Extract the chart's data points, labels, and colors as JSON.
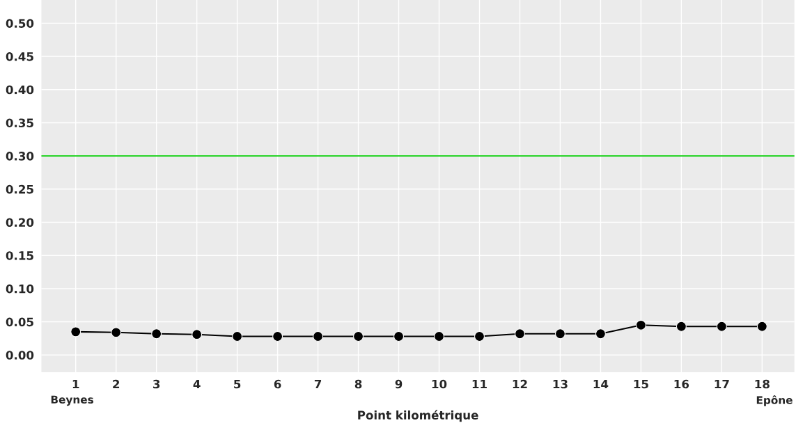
{
  "chart_data": {
    "type": "line",
    "xlabel": "Point kilométrique",
    "x": [
      1,
      2,
      3,
      4,
      5,
      6,
      7,
      8,
      9,
      10,
      11,
      12,
      13,
      14,
      15,
      16,
      17,
      18
    ],
    "series": [
      {
        "color": "#000000",
        "values": [
          0.035,
          0.034,
          0.032,
          0.031,
          0.028,
          0.028,
          0.028,
          0.028,
          0.028,
          0.028,
          0.028,
          0.032,
          0.032,
          0.032,
          0.045,
          0.043,
          0.043,
          0.043
        ]
      }
    ],
    "marker": "circle",
    "line_style": "solid",
    "grid": true,
    "legend": false,
    "xlim": [
      0.15,
      18.8
    ],
    "xticks": [
      1,
      2,
      3,
      4,
      5,
      6,
      7,
      8,
      9,
      10,
      11,
      12,
      13,
      14,
      15,
      16,
      17,
      18
    ],
    "ylim": [
      -0.026,
      0.535
    ],
    "yticks": [
      {
        "value": 0,
        "label": "0.00"
      },
      {
        "value": 0.05,
        "label": "0.05"
      },
      {
        "value": 0.1,
        "label": "0.10"
      },
      {
        "value": 0.15,
        "label": "0.15"
      },
      {
        "value": 0.2,
        "label": "0.20"
      },
      {
        "value": 0.25,
        "label": "0.25"
      },
      {
        "value": 0.3,
        "label": "0.30"
      },
      {
        "value": 0.35,
        "label": "0.35"
      },
      {
        "value": 0.4,
        "label": "0.40"
      },
      {
        "value": 0.45,
        "label": "0.45"
      },
      {
        "value": 0.5,
        "label": "0.50"
      }
    ],
    "ref_lines": [
      {
        "axis": "y",
        "value": 0.3,
        "color": "#00cc00"
      }
    ],
    "annotations": [
      "Beynes",
      "Epône"
    ]
  }
}
